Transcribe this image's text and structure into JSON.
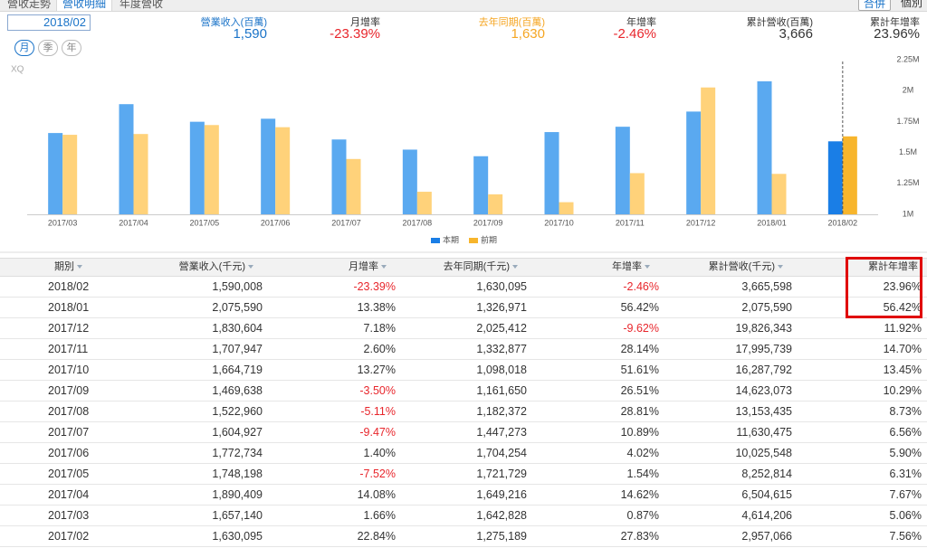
{
  "tabs": [
    "營收走勢",
    "營收明細",
    "年度營收"
  ],
  "view_buttons": [
    "合併",
    "個別"
  ],
  "date": "2018/02",
  "period_buttons": [
    "月",
    "季",
    "年"
  ],
  "summary": [
    {
      "label": "營業收入(百萬)",
      "value": "1,590",
      "label_color": "#1a73c8",
      "value_color": "#1a73c8"
    },
    {
      "label": "月增率",
      "value": "-23.39%",
      "label_color": "#333333",
      "value_color": "#e8262c"
    },
    {
      "label": "去年同期(百萬)",
      "value": "1,630",
      "label_color": "#f5a623",
      "value_color": "#f5a623"
    },
    {
      "label": "年增率",
      "value": "-2.46%",
      "label_color": "#333333",
      "value_color": "#e8262c"
    },
    {
      "label": "累計營收(百萬)",
      "value": "3,666",
      "label_color": "#333333",
      "value_color": "#333333"
    },
    {
      "label": "累計年增率",
      "value": "23.96%",
      "label_color": "#333333",
      "value_color": "#333333"
    }
  ],
  "chart_data": {
    "type": "bar",
    "watermark": "XQ",
    "categories": [
      "2017/03",
      "2017/04",
      "2017/05",
      "2017/06",
      "2017/07",
      "2017/08",
      "2017/09",
      "2017/10",
      "2017/11",
      "2017/12",
      "2018/01",
      "2018/02"
    ],
    "series": [
      {
        "name": "本期",
        "color": "#5aa9f0",
        "highlight_color": "#1a7ee6",
        "values": [
          1657140,
          1890409,
          1748198,
          1772734,
          1604927,
          1522960,
          1469638,
          1664719,
          1707947,
          1830604,
          2075590,
          1590008
        ]
      },
      {
        "name": "前期",
        "color": "#ffd27a",
        "highlight_color": "#f7b52c",
        "values": [
          1642828,
          1649216,
          1721729,
          1704254,
          1447273,
          1182372,
          1161650,
          1098018,
          1332877,
          2025412,
          1326971,
          1630095
        ]
      }
    ],
    "ylim": [
      1000000,
      2250000
    ],
    "yticks": [
      {
        "value": 1000000,
        "label": "1M"
      },
      {
        "value": 1250000,
        "label": "1.25M"
      },
      {
        "value": 1500000,
        "label": "1.5M"
      },
      {
        "value": 1750000,
        "label": "1.75M"
      },
      {
        "value": 2000000,
        "label": "2M"
      },
      {
        "value": 2250000,
        "label": "2.25M"
      }
    ],
    "grid": false,
    "legend": "bottom"
  },
  "table": {
    "headers": [
      "期別",
      "營業收入(千元)",
      "月增率",
      "去年同期(千元)",
      "年增率",
      "累計營收(千元)",
      "累計年增率"
    ],
    "rows": [
      [
        "2018/02",
        "1,590,008",
        "-23.39%",
        "1,630,095",
        "-2.46%",
        "3,665,598",
        "23.96%"
      ],
      [
        "2018/01",
        "2,075,590",
        "13.38%",
        "1,326,971",
        "56.42%",
        "2,075,590",
        "56.42%"
      ],
      [
        "2017/12",
        "1,830,604",
        "7.18%",
        "2,025,412",
        "-9.62%",
        "19,826,343",
        "11.92%"
      ],
      [
        "2017/11",
        "1,707,947",
        "2.60%",
        "1,332,877",
        "28.14%",
        "17,995,739",
        "14.70%"
      ],
      [
        "2017/10",
        "1,664,719",
        "13.27%",
        "1,098,018",
        "51.61%",
        "16,287,792",
        "13.45%"
      ],
      [
        "2017/09",
        "1,469,638",
        "-3.50%",
        "1,161,650",
        "26.51%",
        "14,623,073",
        "10.29%"
      ],
      [
        "2017/08",
        "1,522,960",
        "-5.11%",
        "1,182,372",
        "28.81%",
        "13,153,435",
        "8.73%"
      ],
      [
        "2017/07",
        "1,604,927",
        "-9.47%",
        "1,447,273",
        "10.89%",
        "11,630,475",
        "6.56%"
      ],
      [
        "2017/06",
        "1,772,734",
        "1.40%",
        "1,704,254",
        "4.02%",
        "10,025,548",
        "5.90%"
      ],
      [
        "2017/05",
        "1,748,198",
        "-7.52%",
        "1,721,729",
        "1.54%",
        "8,252,814",
        "6.31%"
      ],
      [
        "2017/04",
        "1,890,409",
        "14.08%",
        "1,649,216",
        "14.62%",
        "6,504,615",
        "7.67%"
      ],
      [
        "2017/03",
        "1,657,140",
        "1.66%",
        "1,642,828",
        "0.87%",
        "4,614,206",
        "5.06%"
      ],
      [
        "2017/02",
        "1,630,095",
        "22.84%",
        "1,275,189",
        "27.83%",
        "2,957,066",
        "7.56%"
      ]
    ]
  }
}
